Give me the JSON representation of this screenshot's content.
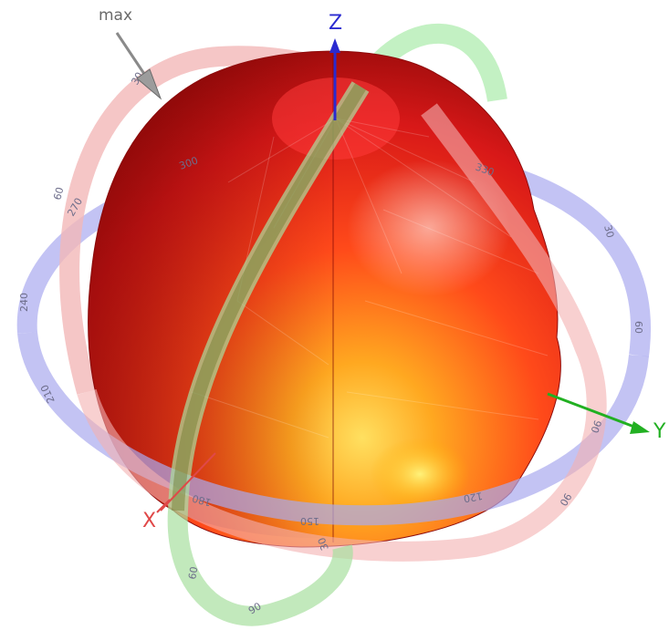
{
  "marker": {
    "max_label": "max"
  },
  "axes": {
    "x": {
      "label": "X",
      "color": "#e04848"
    },
    "y": {
      "label": "Y",
      "color": "#22b022"
    },
    "z": {
      "label": "Z",
      "color": "#2a2ad0"
    }
  },
  "rings": {
    "blue": {
      "color": "#b4b4f0",
      "ticks": [
        "30",
        "60",
        "90",
        "120",
        "150",
        "180",
        "210",
        "240",
        "270",
        "300",
        "330"
      ]
    },
    "red": {
      "color": "#f0b4b4",
      "ticks": [
        "30",
        "60",
        "90"
      ]
    },
    "green": {
      "color": "#b4ecb4",
      "ticks": [
        "30",
        "60",
        "90"
      ]
    }
  },
  "pattern": {
    "colors": {
      "highlight": "#ffd24a",
      "mid": "#ff5a22",
      "shadow": "#a81010",
      "dark": "#6e0606"
    }
  }
}
